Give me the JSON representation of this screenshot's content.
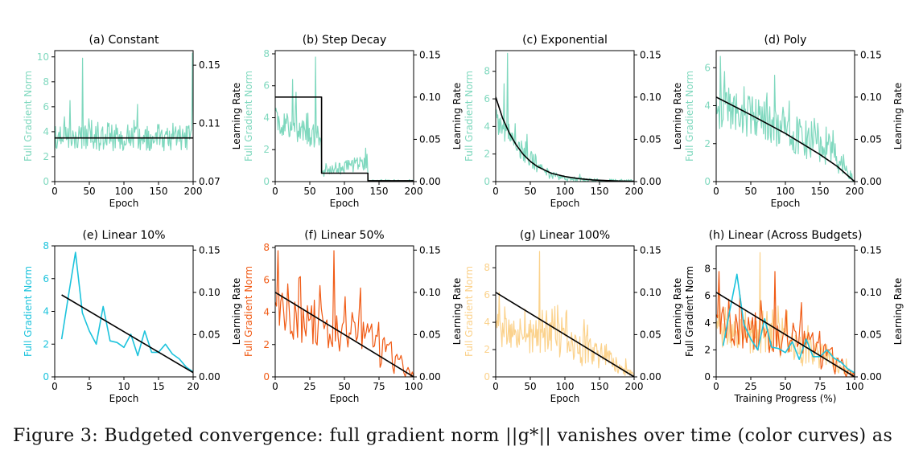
{
  "caption": "Figure 3:  Budgeted convergence:  full gradient norm ||g*|| vanishes over time (color curves) as",
  "chart_data": [
    {
      "type": "line",
      "title": "(a) Constant",
      "xlabel": "Epoch",
      "ylabel": "Full Gradient Norm",
      "ylabel2": "Learning Rate",
      "xlim": [
        0,
        200
      ],
      "ylim": [
        0,
        10.5
      ],
      "y2lim": [
        0.07,
        0.16
      ],
      "xticks": [
        0,
        50,
        100,
        150,
        200
      ],
      "yticks": [
        0,
        2,
        4,
        6,
        8,
        10
      ],
      "y2ticks": [
        0.07,
        0.11,
        0.15
      ],
      "y2ticklabels": [
        "0.07",
        "0.11",
        "0.15"
      ],
      "color": "#7fd8be",
      "series": [
        {
          "kind": "noisy",
          "n": 200,
          "base": [
            [
              0,
              3.5
            ],
            [
              200,
              3.5
            ]
          ],
          "amp": 0.9,
          "spikes": [
            [
              40,
              9.9
            ],
            [
              22,
              6.5
            ],
            [
              199,
              10.3
            ],
            [
              120,
              6.2
            ]
          ],
          "seed": 3
        },
        {
          "kind": "lr",
          "points": [
            [
              0,
              0.1
            ],
            [
              200,
              0.1
            ]
          ]
        }
      ]
    },
    {
      "type": "line",
      "title": "(b) Step Decay",
      "xlabel": "Epoch",
      "ylabel": "Full Gradient Norm",
      "ylabel2": "Learning Rate",
      "xlim": [
        0,
        200
      ],
      "ylim": [
        0,
        8.2
      ],
      "y2lim": [
        0,
        0.155
      ],
      "xticks": [
        0,
        50,
        100,
        150,
        200
      ],
      "yticks": [
        0,
        2,
        4,
        6,
        8
      ],
      "y2ticks": [
        0,
        0.05,
        0.1,
        0.15
      ],
      "y2ticklabels": [
        "0.00",
        "0.05",
        "0.10",
        "0.15"
      ],
      "color": "#7fd8be",
      "series": [
        {
          "kind": "noisy",
          "n": 200,
          "base": [
            [
              0,
              3.8
            ],
            [
              66,
              2.6
            ],
            [
              67,
              0.6
            ],
            [
              100,
              0.9
            ],
            [
              133,
              1.2
            ],
            [
              134,
              0.05
            ],
            [
              200,
              0.02
            ]
          ],
          "amp": 0.7,
          "spikes": [
            [
              58,
              7.8
            ],
            [
              25,
              6.4
            ],
            [
              30,
              5.6
            ],
            [
              131,
              2.1
            ]
          ],
          "seed": 7
        },
        {
          "kind": "lr",
          "points": [
            [
              0,
              0.1
            ],
            [
              67,
              0.1
            ],
            [
              67,
              0.01
            ],
            [
              134,
              0.01
            ],
            [
              134,
              0.001
            ],
            [
              200,
              0.001
            ]
          ]
        }
      ]
    },
    {
      "type": "line",
      "title": "(c) Exponential",
      "xlabel": "Epoch",
      "ylabel": "Full Gradient Norm",
      "ylabel2": "Learning Rate",
      "xlim": [
        0,
        200
      ],
      "ylim": [
        0,
        9.5
      ],
      "y2lim": [
        0,
        0.155
      ],
      "xticks": [
        0,
        50,
        100,
        150,
        200
      ],
      "yticks": [
        0,
        2,
        4,
        6,
        8
      ],
      "y2ticks": [
        0,
        0.05,
        0.1,
        0.15
      ],
      "y2ticklabels": [
        "0.00",
        "0.05",
        "0.10",
        "0.15"
      ],
      "color": "#7fd8be",
      "series": [
        {
          "kind": "noisy",
          "n": 200,
          "base": [
            [
              0,
              4.5
            ],
            [
              25,
              3.0
            ],
            [
              50,
              1.6
            ],
            [
              75,
              0.6
            ],
            [
              100,
              0.2
            ],
            [
              150,
              0.05
            ],
            [
              200,
              0.02
            ]
          ],
          "amp": 0.8,
          "spikes": [
            [
              12,
              7.1
            ],
            [
              17,
              9.3
            ],
            [
              28,
              4.2
            ]
          ],
          "seed": 11
        },
        {
          "kind": "lr",
          "points": [
            [
              0,
              0.1
            ],
            [
              10,
              0.075
            ],
            [
              20,
              0.057
            ],
            [
              30,
              0.043
            ],
            [
              40,
              0.032
            ],
            [
              50,
              0.024
            ],
            [
              60,
              0.018
            ],
            [
              70,
              0.014
            ],
            [
              80,
              0.01
            ],
            [
              90,
              0.008
            ],
            [
              100,
              0.006
            ],
            [
              120,
              0.0035
            ],
            [
              140,
              0.002
            ],
            [
              160,
              0.0012
            ],
            [
              180,
              0.0007
            ],
            [
              200,
              0.0004
            ]
          ]
        }
      ]
    },
    {
      "type": "line",
      "title": "(d) Poly",
      "xlabel": "Epoch",
      "ylabel": "Full Gradient Norm",
      "ylabel2": "Learning Rate",
      "xlim": [
        0,
        200
      ],
      "ylim": [
        0,
        6.9
      ],
      "y2lim": [
        0,
        0.155
      ],
      "xticks": [
        0,
        50,
        100,
        150,
        200
      ],
      "yticks": [
        0,
        2,
        4,
        6
      ],
      "y2ticks": [
        0,
        0.05,
        0.1,
        0.15
      ],
      "y2ticklabels": [
        "0.00",
        "0.05",
        "0.10",
        "0.15"
      ],
      "color": "#7fd8be",
      "series": [
        {
          "kind": "noisy",
          "n": 200,
          "base": [
            [
              0,
              4.0
            ],
            [
              100,
              2.8
            ],
            [
              160,
              1.8
            ],
            [
              200,
              0.05
            ]
          ],
          "amp": 1.0,
          "spikes": [
            [
              6,
              6.6
            ],
            [
              12,
              5.8
            ],
            [
              40,
              5.0
            ]
          ],
          "seed": 19
        },
        {
          "kind": "lr",
          "points": [
            [
              0,
              0.1
            ],
            [
              50,
              0.079
            ],
            [
              100,
              0.057
            ],
            [
              150,
              0.032
            ],
            [
              175,
              0.018
            ],
            [
              200,
              0.0
            ]
          ]
        }
      ]
    },
    {
      "type": "line",
      "title": "(e) Linear 10%",
      "xlabel": "Epoch",
      "ylabel": "Full Gradient Norm",
      "ylabel2": "Learning Rate",
      "xlim": [
        0,
        20
      ],
      "ylim": [
        0,
        8
      ],
      "y2lim": [
        0,
        0.155
      ],
      "xticks": [
        0,
        5,
        10,
        15,
        20
      ],
      "yticks": [
        0,
        2,
        4,
        6,
        8
      ],
      "y2ticks": [
        0,
        0.05,
        0.1,
        0.15
      ],
      "y2ticklabels": [
        "0.00",
        "0.05",
        "0.10",
        "0.15"
      ],
      "color": "#1cc3dc",
      "series": [
        {
          "kind": "points",
          "points": [
            [
              1,
              2.3
            ],
            [
              2,
              5.0
            ],
            [
              3,
              7.6
            ],
            [
              4,
              3.9
            ],
            [
              5,
              2.8
            ],
            [
              6,
              2.0
            ],
            [
              7,
              4.3
            ],
            [
              8,
              2.2
            ],
            [
              9,
              2.1
            ],
            [
              10,
              1.8
            ],
            [
              11,
              2.6
            ],
            [
              12,
              1.3
            ],
            [
              13,
              2.8
            ],
            [
              14,
              1.5
            ],
            [
              15,
              1.5
            ],
            [
              16,
              2.0
            ],
            [
              17,
              1.4
            ],
            [
              18,
              1.1
            ],
            [
              19,
              0.6
            ],
            [
              20,
              0.3
            ]
          ]
        },
        {
          "kind": "lr",
          "points": [
            [
              1,
              0.097
            ],
            [
              20,
              0.005
            ]
          ]
        }
      ]
    },
    {
      "type": "line",
      "title": "(f) Linear 50%",
      "xlabel": "Epoch",
      "ylabel": "Full Gradient Norm",
      "ylabel2": "Learning Rate",
      "xlim": [
        0,
        100
      ],
      "ylim": [
        0,
        8.1
      ],
      "y2lim": [
        0,
        0.155
      ],
      "xticks": [
        0,
        25,
        50,
        75,
        100
      ],
      "yticks": [
        0,
        2,
        4,
        6,
        8
      ],
      "y2ticks": [
        0,
        0.05,
        0.1,
        0.15
      ],
      "y2ticklabels": [
        "0.00",
        "0.05",
        "0.10",
        "0.15"
      ],
      "color": "#f05a14",
      "series": [
        {
          "kind": "noisy",
          "n": 100,
          "base": [
            [
              0,
              4.0
            ],
            [
              50,
              3.0
            ],
            [
              80,
              1.6
            ],
            [
              100,
              0.05
            ]
          ],
          "amp": 1.3,
          "spikes": [
            [
              2,
              7.8
            ],
            [
              42,
              7.8
            ],
            [
              17,
              6.1
            ],
            [
              18,
              6.2
            ],
            [
              62,
              5.5
            ]
          ],
          "seed": 23
        },
        {
          "kind": "lr",
          "points": [
            [
              0,
              0.1
            ],
            [
              100,
              0.0
            ]
          ]
        }
      ]
    },
    {
      "type": "line",
      "title": "(g) Linear 100%",
      "xlabel": "Epoch",
      "ylabel": "Full Gradient Norm",
      "ylabel2": "Learning Rate",
      "xlim": [
        0,
        200
      ],
      "ylim": [
        0,
        9.6
      ],
      "y2lim": [
        0,
        0.155
      ],
      "xticks": [
        0,
        50,
        100,
        150,
        200
      ],
      "yticks": [
        0,
        2,
        4,
        6,
        8
      ],
      "y2ticks": [
        0,
        0.05,
        0.1,
        0.15
      ],
      "y2ticklabels": [
        "0.00",
        "0.05",
        "0.10",
        "0.15"
      ],
      "color": "#fbd28c",
      "series": [
        {
          "kind": "noisy",
          "n": 200,
          "base": [
            [
              0,
              3.5
            ],
            [
              100,
              2.5
            ],
            [
              160,
              1.4
            ],
            [
              200,
              0.05
            ]
          ],
          "amp": 1.1,
          "spikes": [
            [
              63,
              9.2
            ],
            [
              5,
              6.2
            ],
            [
              128,
              4.2
            ]
          ],
          "seed": 31
        },
        {
          "kind": "lr",
          "points": [
            [
              0,
              0.1
            ],
            [
              200,
              0.0
            ]
          ]
        }
      ]
    },
    {
      "type": "line",
      "title": "(h) Linear (Across Budgets)",
      "xlabel": "Training Progress (%)",
      "ylabel": "Full Gradient Norm",
      "ylabel2": "Learning Rate",
      "xlim": [
        0,
        100
      ],
      "ylim": [
        0,
        9.7
      ],
      "y2lim": [
        0,
        0.155
      ],
      "xticks": [
        0,
        25,
        50,
        75,
        100
      ],
      "yticks": [
        0,
        2,
        4,
        6,
        8
      ],
      "y2ticks": [
        0,
        0.05,
        0.1,
        0.15
      ],
      "y2ticklabels": [
        "0.00",
        "0.05",
        "0.10",
        "0.15"
      ],
      "color": "#000000",
      "series": [
        {
          "kind": "noisy",
          "n": 200,
          "color": "#fbd28c",
          "base": [
            [
              0,
              3.5
            ],
            [
              50,
              2.5
            ],
            [
              80,
              1.4
            ],
            [
              100,
              0.05
            ]
          ],
          "amp": 1.1,
          "spikes": [
            [
              31.5,
              9.2
            ],
            [
              2.5,
              6.2
            ]
          ],
          "seed": 31
        },
        {
          "kind": "noisy",
          "n": 100,
          "color": "#f05a14",
          "base": [
            [
              0,
              4.0
            ],
            [
              50,
              3.0
            ],
            [
              80,
              1.6
            ],
            [
              100,
              0.05
            ]
          ],
          "amp": 1.3,
          "spikes": [
            [
              2,
              7.8
            ],
            [
              42,
              7.8
            ],
            [
              17,
              6.1
            ],
            [
              62,
              5.5
            ]
          ],
          "seed": 23
        },
        {
          "kind": "points",
          "color": "#1cc3dc",
          "points": [
            [
              5,
              2.3
            ],
            [
              10,
              5.0
            ],
            [
              15,
              7.6
            ],
            [
              20,
              3.9
            ],
            [
              25,
              2.8
            ],
            [
              30,
              2.0
            ],
            [
              35,
              4.3
            ],
            [
              40,
              2.2
            ],
            [
              45,
              2.1
            ],
            [
              50,
              1.8
            ],
            [
              55,
              2.6
            ],
            [
              60,
              1.3
            ],
            [
              65,
              2.8
            ],
            [
              70,
              1.5
            ],
            [
              75,
              1.5
            ],
            [
              80,
              2.0
            ],
            [
              85,
              1.4
            ],
            [
              90,
              1.1
            ],
            [
              95,
              0.6
            ],
            [
              100,
              0.3
            ]
          ]
        },
        {
          "kind": "lr",
          "points": [
            [
              0,
              0.1
            ],
            [
              100,
              0.0
            ]
          ]
        }
      ]
    }
  ]
}
